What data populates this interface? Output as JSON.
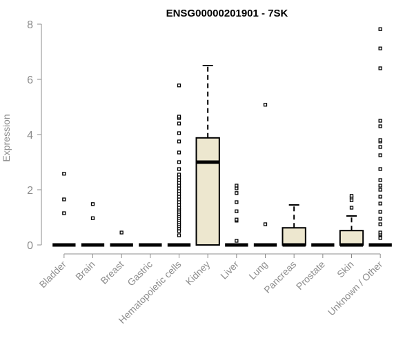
{
  "chart_data": {
    "type": "box",
    "title": "ENSG00000201901 - 7SK",
    "xlabel": "",
    "ylabel": "Expression",
    "ylim": [
      0,
      8
    ],
    "yticks": [
      0,
      2,
      4,
      6,
      8
    ],
    "grid": false,
    "box_fill": "#ede7cf",
    "categories": [
      "Bladder",
      "Brain",
      "Breast",
      "Gastric",
      "Hematopoietic cells",
      "Kidney",
      "Liver",
      "Lung",
      "Pancreas",
      "Prostate",
      "Skin",
      "Unknown / Other"
    ],
    "boxes": [
      {
        "q1": 0,
        "median": 0,
        "q3": 0,
        "whisker_low": 0,
        "whisker_high": 0,
        "outliers": [
          1.15,
          1.65,
          2.58
        ]
      },
      {
        "q1": 0,
        "median": 0,
        "q3": 0,
        "whisker_low": 0,
        "whisker_high": 0,
        "outliers": [
          0.97,
          1.48
        ]
      },
      {
        "q1": 0,
        "median": 0,
        "q3": 0,
        "whisker_low": 0,
        "whisker_high": 0,
        "outliers": [
          0.45
        ]
      },
      {
        "q1": 0,
        "median": 0,
        "q3": 0,
        "whisker_low": 0,
        "whisker_high": 0,
        "outliers": []
      },
      {
        "q1": 0,
        "median": 0,
        "q3": 0,
        "whisker_low": 0,
        "whisker_high": 0,
        "outliers": [
          0.35,
          0.5,
          0.6,
          0.68,
          0.75,
          0.82,
          0.9,
          0.98,
          1.05,
          1.12,
          1.2,
          1.28,
          1.35,
          1.45,
          1.55,
          1.65,
          1.75,
          1.85,
          1.95,
          2.05,
          2.15,
          2.25,
          2.35,
          2.45,
          2.55,
          2.75,
          3.0,
          3.35,
          3.75,
          4.05,
          4.4,
          4.6,
          4.65,
          5.78
        ]
      },
      {
        "q1": 0,
        "median": 3.0,
        "q3": 3.88,
        "whisker_low": 0,
        "whisker_high": 6.5,
        "outliers": []
      },
      {
        "q1": 0,
        "median": 0,
        "q3": 0,
        "whisker_low": 0,
        "whisker_high": 0,
        "outliers": [
          0.15,
          0.88,
          0.92,
          1.22,
          1.55,
          1.88,
          2.05,
          2.15
        ]
      },
      {
        "q1": 0,
        "median": 0,
        "q3": 0,
        "whisker_low": 0,
        "whisker_high": 0,
        "outliers": [
          0.75,
          5.08
        ]
      },
      {
        "q1": 0,
        "median": 0,
        "q3": 0.62,
        "whisker_low": 0,
        "whisker_high": 1.45,
        "outliers": []
      },
      {
        "q1": 0,
        "median": 0,
        "q3": 0,
        "whisker_low": 0,
        "whisker_high": 0,
        "outliers": []
      },
      {
        "q1": 0,
        "median": 0,
        "q3": 0.52,
        "whisker_low": 0,
        "whisker_high": 1.05,
        "outliers": [
          1.35,
          1.62,
          1.72,
          1.78
        ]
      },
      {
        "q1": 0,
        "median": 0,
        "q3": 0,
        "whisker_low": 0,
        "whisker_high": 0,
        "outliers": [
          0.25,
          0.38,
          0.45,
          0.75,
          0.95,
          1.2,
          1.5,
          1.75,
          2.0,
          2.15,
          2.35,
          2.75,
          3.25,
          3.55,
          3.75,
          3.8,
          4.3,
          4.5,
          6.4,
          7.12,
          7.82
        ]
      }
    ]
  }
}
